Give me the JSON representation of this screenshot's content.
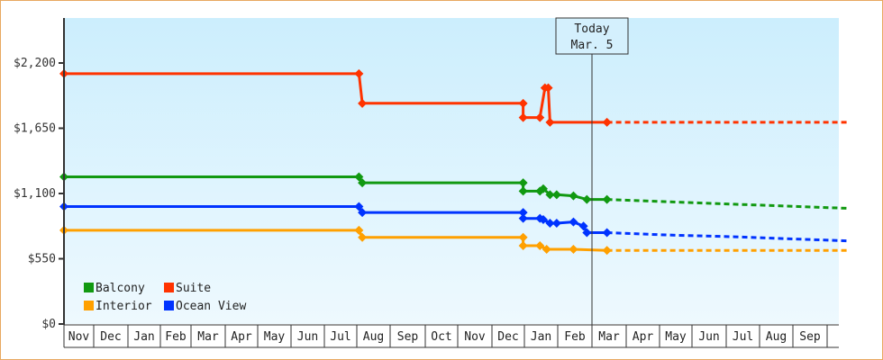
{
  "chart_data": {
    "type": "line",
    "title": "",
    "xlabel": "",
    "ylabel": "",
    "ylim": [
      0,
      2530
    ],
    "y_ticks": [
      {
        "value": 0,
        "label": "$0"
      },
      {
        "value": 550,
        "label": "$550"
      },
      {
        "value": 1100,
        "label": "$1,100"
      },
      {
        "value": 1650,
        "label": "$1,650"
      },
      {
        "value": 2200,
        "label": "$2,200"
      }
    ],
    "x_months": [
      "Nov",
      "Dec",
      "Jan",
      "Feb",
      "Mar",
      "Apr",
      "May",
      "Jun",
      "Jul",
      "Aug",
      "Sep",
      "Oct",
      "Nov",
      "Dec",
      "Jan",
      "Feb",
      "Mar",
      "Apr",
      "May",
      "Jun",
      "Jul",
      "Aug",
      "Sep"
    ],
    "today_marker": {
      "line1": "Today",
      "line2": "Mar. 5"
    },
    "legend": [
      {
        "name": "Balcony",
        "color": "#119911"
      },
      {
        "name": "Suite",
        "color": "#ff3300"
      },
      {
        "name": "Interior",
        "color": "#ffa000"
      },
      {
        "name": "Ocean View",
        "color": "#0033ff"
      }
    ],
    "grid": false,
    "series": [
      {
        "name": "Suite",
        "color": "#ff3300",
        "points": [
          [
            0,
            2110
          ],
          [
            8.8,
            2110
          ],
          [
            8.9,
            1860
          ],
          [
            13.7,
            1860
          ],
          [
            13.7,
            1740
          ],
          [
            14.2,
            1740
          ],
          [
            14.35,
            1990
          ],
          [
            14.45,
            1990
          ],
          [
            14.5,
            1700
          ],
          [
            14.7,
            1700
          ],
          [
            15.2,
            1700
          ],
          [
            16.2,
            1700
          ]
        ],
        "forecast": [
          [
            16.2,
            1700
          ],
          [
            23.4,
            1700
          ]
        ]
      },
      {
        "name": "Balcony",
        "color": "#119911",
        "points": [
          [
            0,
            1240
          ],
          [
            8.8,
            1240
          ],
          [
            8.9,
            1190
          ],
          [
            13.7,
            1190
          ],
          [
            13.7,
            1120
          ],
          [
            14.2,
            1120
          ],
          [
            14.3,
            1140
          ],
          [
            14.5,
            1090
          ],
          [
            14.7,
            1090
          ],
          [
            15.2,
            1080
          ],
          [
            15.6,
            1050
          ],
          [
            16.2,
            1050
          ]
        ],
        "forecast": [
          [
            16.2,
            1050
          ],
          [
            18,
            1030
          ],
          [
            20,
            1010
          ],
          [
            23.4,
            975
          ]
        ]
      },
      {
        "name": "Ocean View",
        "color": "#0033ff",
        "points": [
          [
            0,
            990
          ],
          [
            8.8,
            990
          ],
          [
            8.9,
            940
          ],
          [
            13.7,
            940
          ],
          [
            13.7,
            890
          ],
          [
            14.2,
            890
          ],
          [
            14.3,
            880
          ],
          [
            14.5,
            850
          ],
          [
            14.7,
            850
          ],
          [
            15.2,
            860
          ],
          [
            15.5,
            825
          ],
          [
            15.6,
            770
          ],
          [
            16.2,
            770
          ]
        ],
        "forecast": [
          [
            16.2,
            770
          ],
          [
            18,
            750
          ],
          [
            20,
            735
          ],
          [
            23.4,
            700
          ]
        ]
      },
      {
        "name": "Interior",
        "color": "#ffa000",
        "points": [
          [
            0,
            790
          ],
          [
            8.8,
            790
          ],
          [
            8.9,
            730
          ],
          [
            13.7,
            730
          ],
          [
            13.7,
            660
          ],
          [
            14.2,
            660
          ],
          [
            14.4,
            630
          ],
          [
            14.7,
            630
          ],
          [
            15.2,
            630
          ],
          [
            16.2,
            620
          ]
        ],
        "forecast": [
          [
            16.2,
            620
          ],
          [
            23.4,
            620
          ]
        ]
      }
    ]
  }
}
